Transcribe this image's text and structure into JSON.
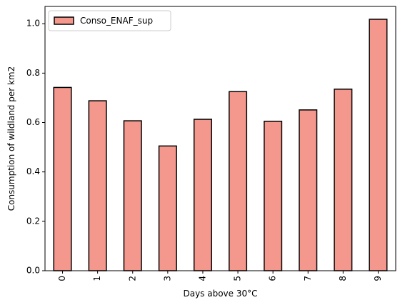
{
  "chart_data": {
    "type": "bar",
    "categories": [
      "0",
      "1",
      "2",
      "3",
      "4",
      "5",
      "6",
      "7",
      "8",
      "9"
    ],
    "series": [
      {
        "name": "Conso_ENAF_sup",
        "values": [
          0.742,
          0.688,
          0.607,
          0.505,
          0.613,
          0.725,
          0.605,
          0.651,
          0.735,
          1.018
        ]
      }
    ],
    "xlabel": "Days above 30°C",
    "ylabel": "Consumption of wildland per km2",
    "ylim": [
      0,
      1.07
    ],
    "yticks": [
      0.0,
      0.2,
      0.4,
      0.6,
      0.8,
      1.0
    ],
    "ytick_labels": [
      "0.0",
      "0.2",
      "0.4",
      "0.6",
      "0.8",
      "1.0"
    ],
    "bar_color": "#f4978c",
    "edge_color": "#000000",
    "grid": false,
    "legend_position": "top-left",
    "xtick_rotation": "vertical"
  }
}
